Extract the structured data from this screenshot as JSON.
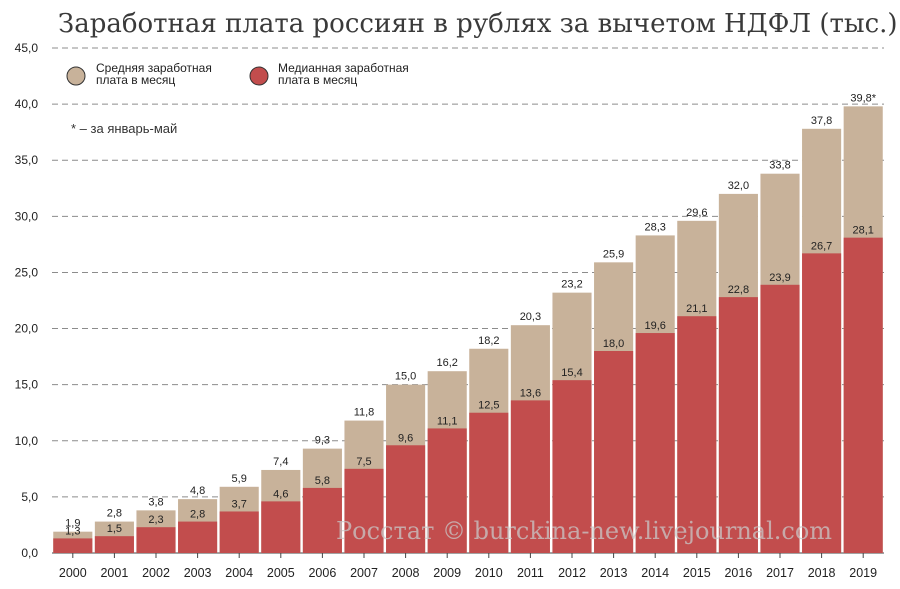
{
  "chart_data": {
    "type": "bar",
    "title": "Заработная плата россиян в рублях за вычетом НДФЛ (тыс.)",
    "categories": [
      "2000",
      "2001",
      "2002",
      "2003",
      "2004",
      "2005",
      "2006",
      "2007",
      "2008",
      "2009",
      "2010",
      "2011",
      "2012",
      "2013",
      "2014",
      "2015",
      "2016",
      "2017",
      "2018",
      "2019"
    ],
    "series": [
      {
        "name": "Средняя заработная плата в месяц",
        "legend_lines": [
          "Средняя заработная",
          "плата в месяц"
        ],
        "color": "#c8b29a",
        "values": [
          1.9,
          2.8,
          3.8,
          4.8,
          5.9,
          7.4,
          9.3,
          11.8,
          15.0,
          16.2,
          18.2,
          20.3,
          23.2,
          25.9,
          28.3,
          29.6,
          32.0,
          33.8,
          37.8,
          39.8
        ],
        "labels": [
          "1,9",
          "2,8",
          "3,8",
          "4,8",
          "5,9",
          "7,4",
          "9,3",
          "11,8",
          "15,0",
          "16,2",
          "18,2",
          "20,3",
          "23,2",
          "25,9",
          "28,3",
          "29,6",
          "32,0",
          "33,8",
          "37,8",
          "39,8*"
        ]
      },
      {
        "name": "Медианная заработная плата в месяц",
        "legend_lines": [
          "Медианная заработная",
          "плата в месяц"
        ],
        "color": "#c24d4d",
        "values": [
          1.3,
          1.5,
          2.3,
          2.8,
          3.7,
          4.6,
          5.8,
          7.5,
          9.6,
          11.1,
          12.5,
          13.6,
          15.4,
          18.0,
          19.6,
          21.1,
          22.8,
          23.9,
          26.7,
          28.1
        ],
        "labels": [
          "1,3",
          "1,5",
          "2,3",
          "2,8",
          "3,7",
          "4,6",
          "5,8",
          "7,5",
          "9,6",
          "11,1",
          "12,5",
          "13,6",
          "15,4",
          "18,0",
          "19,6",
          "21,1",
          "22,8",
          "23,9",
          "26,7",
          "28,1"
        ]
      }
    ],
    "ylim": [
      0,
      45
    ],
    "yticks": [
      0,
      5,
      10,
      15,
      20,
      25,
      30,
      35,
      40,
      45
    ],
    "ytick_labels": [
      "0,0",
      "5,0",
      "10,0",
      "15,0",
      "20,0",
      "25,0",
      "30,0",
      "35,0",
      "40,0",
      "45,0"
    ],
    "grid": "horizontal dashed",
    "legend_position": "top-left",
    "note": "* – за январь-май",
    "watermark": "Росстат © burckina-new.livejournal.com"
  }
}
